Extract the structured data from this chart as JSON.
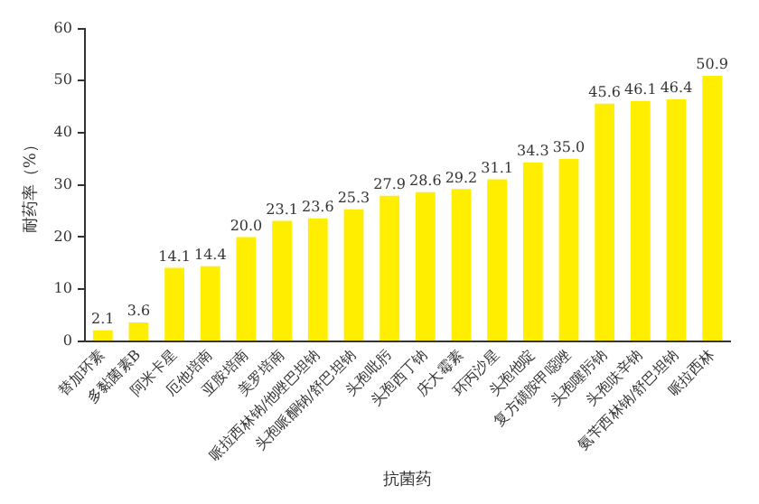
{
  "chart_data": {
    "type": "bar",
    "xlabel": "抗菌药",
    "ylabel": "耐药率（%）",
    "categories": [
      "替加环素",
      "多黏菌素B",
      "阿米卡星",
      "厄他培南",
      "亚胺培南",
      "美罗培南",
      "哌拉西林钠/他唑巴坦钠",
      "头孢哌酮钠/舒巴坦钠",
      "头孢吡肟",
      "头孢西丁钠",
      "庆大霉素",
      "环丙沙星",
      "头孢他啶",
      "复方磺胺甲噁唑",
      "头孢噻肟钠",
      "头孢呋辛钠",
      "氨苄西林钠/舒巴坦钠",
      "哌拉西林"
    ],
    "values": [
      2.1,
      3.6,
      14.1,
      14.4,
      20.0,
      23.1,
      23.6,
      25.3,
      27.9,
      28.6,
      29.2,
      31.1,
      34.3,
      35.0,
      45.6,
      46.1,
      46.4,
      50.9
    ],
    "value_labels": [
      "2.1",
      "3.6",
      "14.1",
      "14.4",
      "20.0",
      "23.1",
      "23.6",
      "25.3",
      "27.9",
      "28.6",
      "29.2",
      "31.1",
      "34.3",
      "35.0",
      "45.6",
      "46.1",
      "46.4",
      "50.9"
    ],
    "color": "#ffee00",
    "ylim": [
      0,
      60
    ],
    "yticks": [
      0,
      10,
      20,
      30,
      40,
      50,
      60
    ],
    "grid": false,
    "legend": false
  }
}
